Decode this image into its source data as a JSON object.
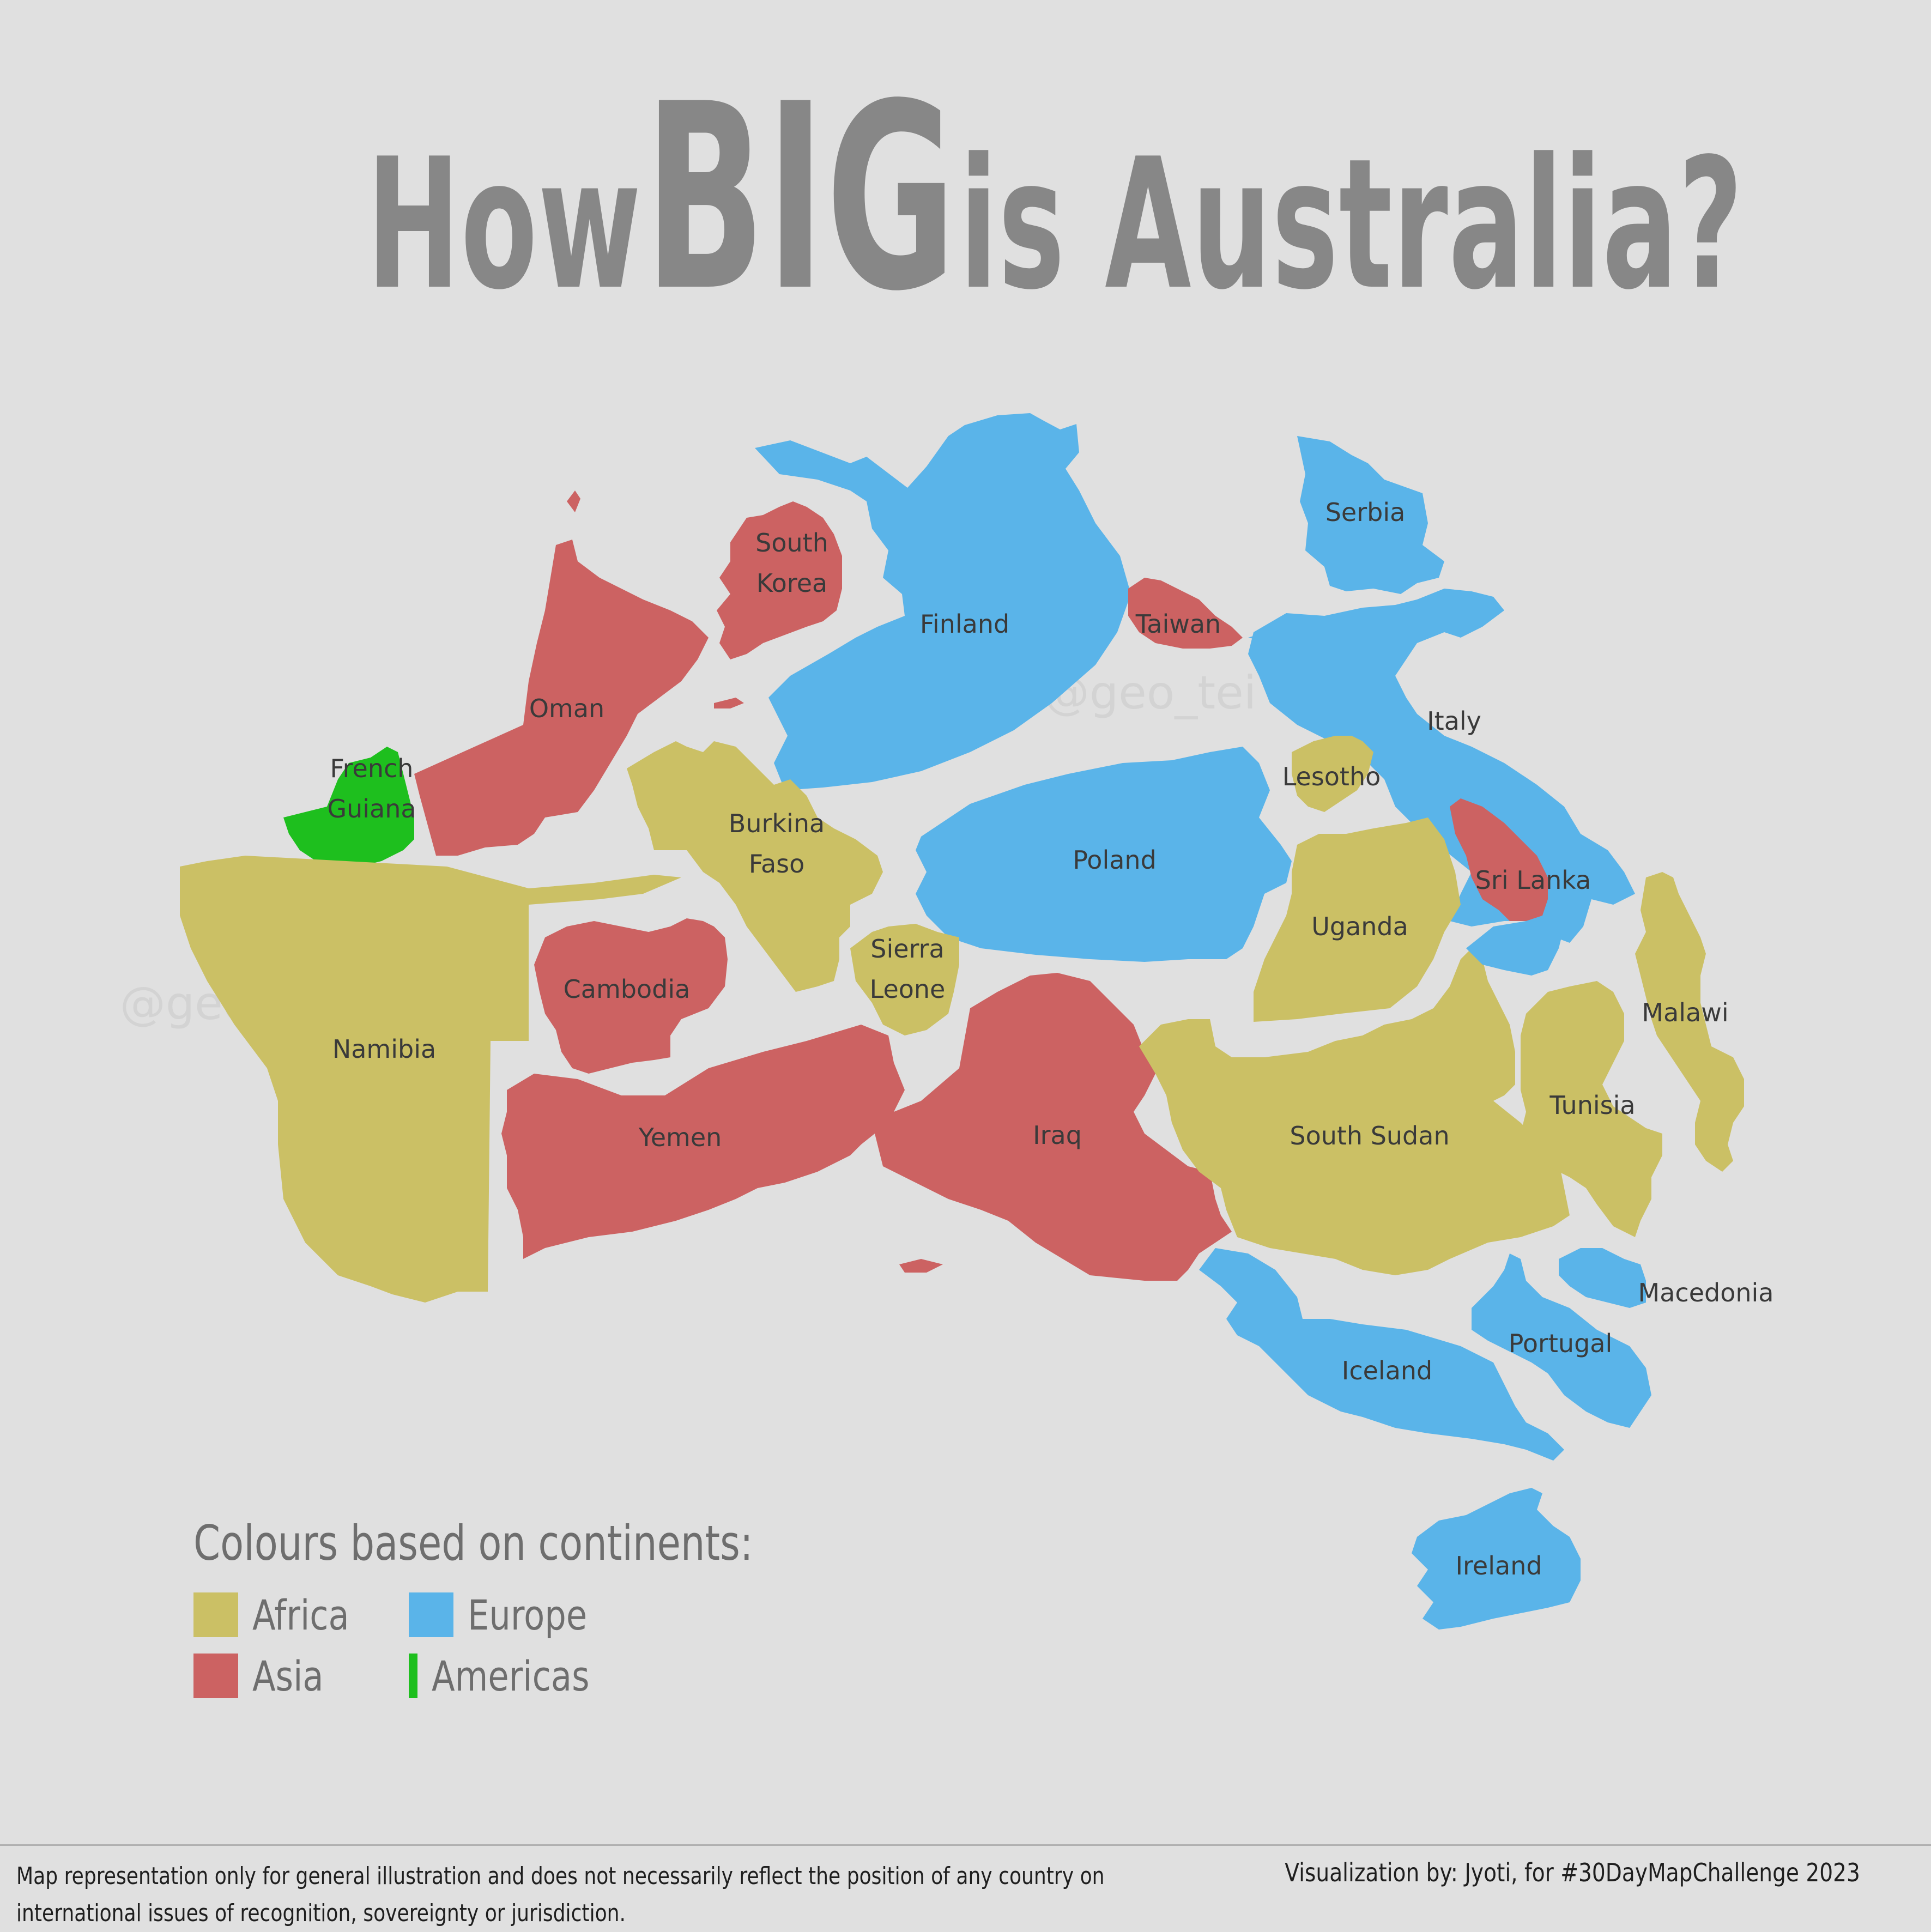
{
  "title": {
    "part1": "How",
    "big": "BIG",
    "part2": "is Australia?"
  },
  "watermark": "@geo_tei",
  "colors": {
    "background": "#e0e0e0",
    "africa": "#cbc065",
    "asia": "#cc6262",
    "europe": "#5ab4e9",
    "americas": "#1ebf1e",
    "title": "#878787"
  },
  "countries": [
    {
      "name": "Finland",
      "continent": "Europe",
      "label_lines": [
        "Finland"
      ]
    },
    {
      "name": "Serbia",
      "continent": "Europe",
      "label_lines": [
        "Serbia"
      ]
    },
    {
      "name": "Italy",
      "continent": "Europe",
      "label_lines": [
        "Italy"
      ]
    },
    {
      "name": "Poland",
      "continent": "Europe",
      "label_lines": [
        "Poland"
      ]
    },
    {
      "name": "Iceland",
      "continent": "Europe",
      "label_lines": [
        "Iceland"
      ]
    },
    {
      "name": "Portugal",
      "continent": "Europe",
      "label_lines": [
        "Portugal"
      ]
    },
    {
      "name": "Macedonia",
      "continent": "Europe",
      "label_lines": [
        "Macedonia"
      ]
    },
    {
      "name": "Ireland",
      "continent": "Europe",
      "label_lines": [
        "Ireland"
      ]
    },
    {
      "name": "South Korea",
      "continent": "Asia",
      "label_lines": [
        "South",
        "Korea"
      ]
    },
    {
      "name": "Taiwan",
      "continent": "Asia",
      "label_lines": [
        "Taiwan"
      ]
    },
    {
      "name": "Oman",
      "continent": "Asia",
      "label_lines": [
        "Oman"
      ]
    },
    {
      "name": "Cambodia",
      "continent": "Asia",
      "label_lines": [
        "Cambodia"
      ]
    },
    {
      "name": "Yemen",
      "continent": "Asia",
      "label_lines": [
        "Yemen"
      ]
    },
    {
      "name": "Iraq",
      "continent": "Asia",
      "label_lines": [
        "Iraq"
      ]
    },
    {
      "name": "Sri Lanka",
      "continent": "Asia",
      "label_lines": [
        "Sri Lanka"
      ]
    },
    {
      "name": "French Guiana",
      "continent": "Americas",
      "label_lines": [
        "French",
        "Guiana"
      ]
    },
    {
      "name": "Namibia",
      "continent": "Africa",
      "label_lines": [
        "Namibia"
      ]
    },
    {
      "name": "Burkina Faso",
      "continent": "Africa",
      "label_lines": [
        "Burkina",
        "Faso"
      ]
    },
    {
      "name": "Sierra Leone",
      "continent": "Africa",
      "label_lines": [
        "Sierra",
        "Leone"
      ]
    },
    {
      "name": "Lesotho",
      "continent": "Africa",
      "label_lines": [
        "Lesotho"
      ]
    },
    {
      "name": "Uganda",
      "continent": "Africa",
      "label_lines": [
        "Uganda"
      ]
    },
    {
      "name": "South Sudan",
      "continent": "Africa",
      "label_lines": [
        "South Sudan"
      ]
    },
    {
      "name": "Tunisia",
      "continent": "Africa",
      "label_lines": [
        "Tunisia"
      ]
    },
    {
      "name": "Malawi",
      "continent": "Africa",
      "label_lines": [
        "Malawi"
      ]
    }
  ],
  "legend": {
    "title": "Colours based on continents:",
    "items": [
      {
        "label": "Africa",
        "color": "#cbc065"
      },
      {
        "label": "Europe",
        "color": "#5ab4e9"
      },
      {
        "label": "Asia",
        "color": "#cc6262"
      },
      {
        "label": "Americas",
        "color": "#1ebf1e"
      }
    ]
  },
  "footer": {
    "disclaimer": "Map representation only for general illustration and does not necessarily reflect the position of any country on international issues of recognition, sovereignty or jurisdiction.",
    "credit": "Visualization by: Jyoti, for #30DayMapChallenge 2023"
  }
}
